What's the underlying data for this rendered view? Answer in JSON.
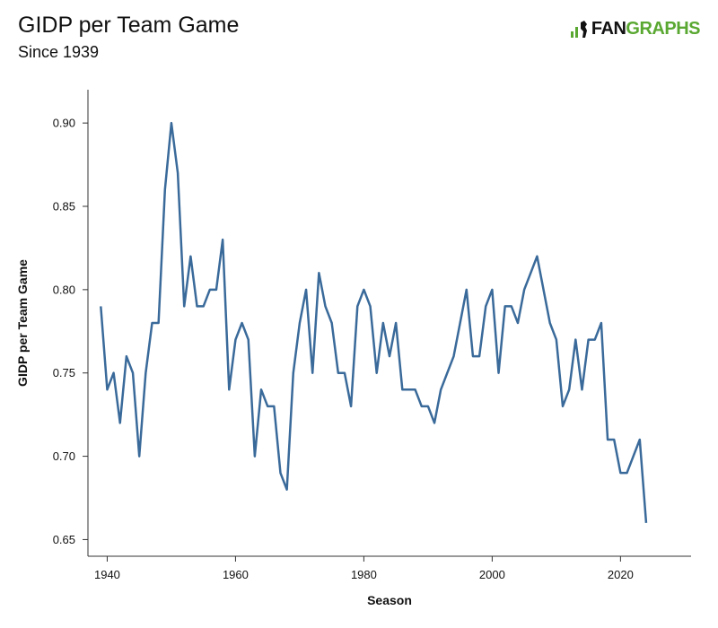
{
  "header": {
    "title": "GIDP per Team Game",
    "subtitle": "Since 1939",
    "logo_fan": "FAN",
    "logo_graphs": "GRAPHS"
  },
  "colors": {
    "line": "#3a6a9a",
    "axis": "#333333",
    "logo_green": "#5aa832"
  },
  "chart_data": {
    "type": "line",
    "title": "GIDP per Team Game",
    "subtitle": "Since 1939",
    "xlabel": "Season",
    "ylabel": "GIDP per Team Game",
    "xlim": [
      1937,
      2031
    ],
    "ylim": [
      0.64,
      0.92
    ],
    "xticks": [
      1940,
      1960,
      1980,
      2000,
      2020
    ],
    "yticks": [
      0.65,
      0.7,
      0.75,
      0.8,
      0.85,
      0.9
    ],
    "ytick_labels": [
      "0.65",
      "0.70",
      "0.75",
      "0.80",
      "0.85",
      "0.90"
    ],
    "grid": false,
    "series": [
      {
        "x": [
          1939,
          1940,
          1941,
          1942,
          1943,
          1944,
          1945,
          1946,
          1947,
          1948,
          1949,
          1950,
          1951,
          1952,
          1953,
          1954,
          1955,
          1956,
          1957,
          1958,
          1959,
          1960,
          1961,
          1962,
          1963,
          1964,
          1965,
          1966,
          1967,
          1968,
          1969,
          1970,
          1971,
          1972,
          1973,
          1974,
          1975,
          1976,
          1977,
          1978,
          1979,
          1980,
          1981,
          1982,
          1983,
          1984,
          1985,
          1986,
          1987,
          1988,
          1989,
          1990,
          1991,
          1992,
          1993,
          1994,
          1995,
          1996,
          1997,
          1998,
          1999,
          2000,
          2001,
          2002,
          2003,
          2004,
          2005,
          2006,
          2007,
          2008,
          2009,
          2010,
          2011,
          2012,
          2013,
          2014,
          2015,
          2016,
          2017,
          2018,
          2019,
          2020,
          2021,
          2022,
          2023,
          2024
        ],
        "y": [
          0.79,
          0.74,
          0.75,
          0.72,
          0.76,
          0.75,
          0.7,
          0.75,
          0.78,
          0.78,
          0.86,
          0.9,
          0.87,
          0.79,
          0.82,
          0.79,
          0.79,
          0.8,
          0.8,
          0.83,
          0.74,
          0.77,
          0.78,
          0.77,
          0.7,
          0.74,
          0.73,
          0.73,
          0.69,
          0.68,
          0.75,
          0.78,
          0.8,
          0.75,
          0.81,
          0.79,
          0.78,
          0.75,
          0.75,
          0.73,
          0.79,
          0.8,
          0.79,
          0.75,
          0.78,
          0.76,
          0.78,
          0.74,
          0.74,
          0.74,
          0.73,
          0.73,
          0.72,
          0.74,
          0.75,
          0.76,
          0.78,
          0.8,
          0.76,
          0.76,
          0.79,
          0.8,
          0.75,
          0.79,
          0.79,
          0.78,
          0.8,
          0.81,
          0.82,
          0.8,
          0.78,
          0.77,
          0.73,
          0.74,
          0.77,
          0.74,
          0.77,
          0.77,
          0.78,
          0.71,
          0.71,
          0.69,
          0.69,
          0.7,
          0.71,
          0.66
        ]
      }
    ]
  }
}
